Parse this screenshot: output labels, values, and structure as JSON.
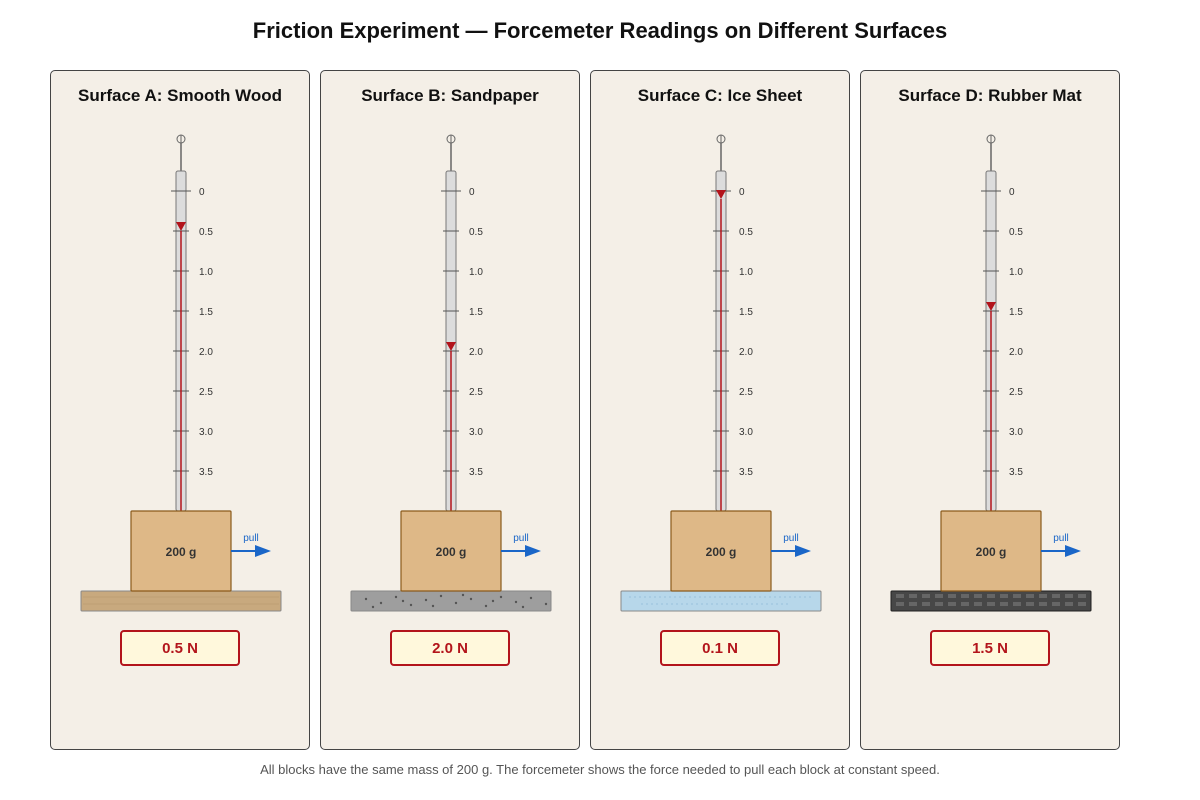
{
  "title": "Friction Experiment — Forcemeter Readings on Different Surfaces",
  "scale_ticks": [
    "0",
    "0.5",
    "1.0",
    "1.5",
    "2.0",
    "2.5",
    "3.0",
    "3.5"
  ],
  "scale_max": 3.5,
  "colors": {
    "panel_bg": "#f4efe7",
    "block": "#deb887",
    "pointer": "#b3141b",
    "pull_arrow": "#1a66c8",
    "reading_border": "#b3141b",
    "reading_bg": "#fff8dc"
  },
  "panels": [
    {
      "title": "Surface A: Smooth Wood",
      "surface": "smooth-wood",
      "surface_color": "#c8a97e",
      "reading_value": 0.5,
      "reading": "0.5 N",
      "mass": "200 g",
      "pull": "pull"
    },
    {
      "title": "Surface B: Sandpaper",
      "surface": "sandpaper",
      "surface_color": "#9e9e9e",
      "reading_value": 2.0,
      "reading": "2.0 N",
      "mass": "200 g",
      "pull": "pull"
    },
    {
      "title": "Surface C: Ice Sheet",
      "surface": "ice-sheet",
      "surface_color": "#b7d7ea",
      "reading_value": 0.1,
      "reading": "0.1 N",
      "mass": "200 g",
      "pull": "pull"
    },
    {
      "title": "Surface D: Rubber Mat",
      "surface": "rubber-mat",
      "surface_color": "#474747",
      "reading_value": 1.5,
      "reading": "1.5 N",
      "mass": "200 g",
      "pull": "pull"
    }
  ],
  "footnote": "All blocks have the same mass of 200 g. The forcemeter shows the force needed to pull each block at constant speed."
}
